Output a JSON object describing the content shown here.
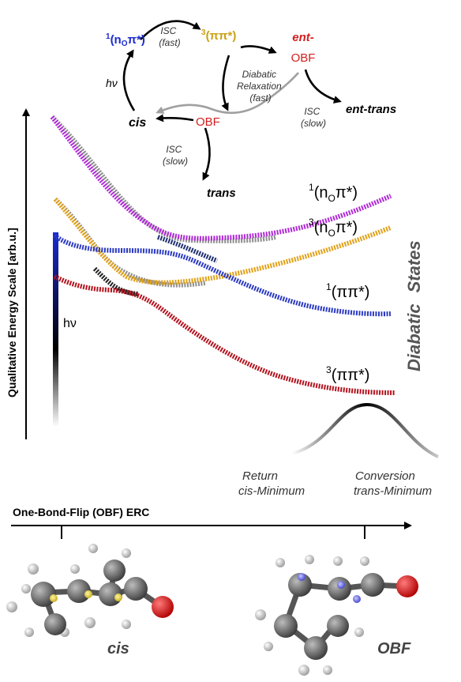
{
  "cycle": {
    "n_pi": {
      "mult": "1",
      "body": "(n",
      "sub": "O",
      "tail": "π*)"
    },
    "pi_pi": {
      "mult": "3",
      "body": "(ππ*)"
    },
    "isc_fast": [
      "ISC",
      "(fast)"
    ],
    "ent_obf": [
      "ent-",
      "OBF"
    ],
    "hv": "hν",
    "diabatic_relax": [
      "Diabatic",
      "Relaxation",
      "(fast)"
    ],
    "ent_trans": "ent-trans",
    "cis": "cis",
    "obf": "OBF",
    "isc_slow_right": [
      "ISC",
      "(slow)"
    ],
    "isc_slow_left": [
      "ISC",
      "(slow)"
    ],
    "trans": "trans"
  },
  "y_axis_label": "Qualitative Energy Scale [arb.u.]",
  "hv_label": "hν",
  "states": {
    "s1_npi": {
      "mult": "1",
      "body": "(n",
      "sub": "O",
      "tail": "π*)",
      "color": "#b02bd6"
    },
    "t1_npi": {
      "mult": "3",
      "body": "(n",
      "sub": "O",
      "tail": "π*)",
      "color": "#e0a21a"
    },
    "s1_pipi": {
      "mult": "1",
      "body": "(ππ*)",
      "color": "#2b3ac0"
    },
    "t1_pipi": {
      "mult": "3",
      "body": "(ππ*)",
      "color": "#b3131e"
    }
  },
  "side_label": [
    "Diabatic",
    "States"
  ],
  "return_label": [
    "Return",
    "cis-Minimum"
  ],
  "conversion_label": [
    "Conversion",
    "trans-Minimum"
  ],
  "x_axis_label": "One-Bond-Flip (OBF) ERC",
  "molecule_labels": {
    "left": "cis",
    "right": "OBF"
  },
  "colors": {
    "red": "#d4201f",
    "gold": "#c9a011",
    "blue_label": "#1a2bd0",
    "grey_path": "#a0a0a0"
  }
}
